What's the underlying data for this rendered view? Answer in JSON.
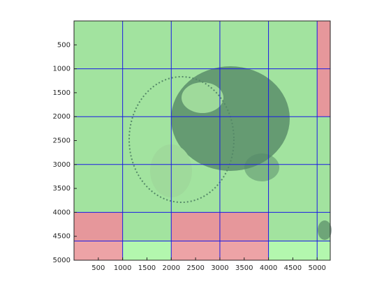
{
  "chart_data": {
    "type": "image-grid",
    "xlim": [
      0,
      5270
    ],
    "ylim": [
      0,
      5000
    ],
    "y_reversed": true,
    "xticks": [
      500,
      1000,
      1500,
      2000,
      2500,
      3000,
      3500,
      4000,
      4500,
      5000
    ],
    "yticks": [
      500,
      1000,
      1500,
      2000,
      2500,
      3000,
      3500,
      4000,
      4500,
      5000
    ],
    "column_edges": [
      0,
      1000,
      2000,
      3000,
      4000,
      5000,
      5270
    ],
    "row_edges": [
      0,
      1000,
      2000,
      3000,
      4000,
      4600,
      5000
    ],
    "grid_color": "#1a1ae6",
    "tile_colors": [
      [
        "#a2e39f",
        "#a2e39f",
        "#a2e39f",
        "#a2e39f",
        "#a2e39f",
        "#e6979b"
      ],
      [
        "#a2e39f",
        "#a2e39f",
        "#a2e39f",
        "#a2e39f",
        "#a2e39f",
        "#e6979b"
      ],
      [
        "#a2e39f",
        "#a2e39f",
        "#a2e39f",
        "#a2e39f",
        "#a2e39f",
        "#a2e39f"
      ],
      [
        "#a2e39f",
        "#a2e39f",
        "#a2e39f",
        "#a2e39f",
        "#a2e39f",
        "#a2e39f"
      ],
      [
        "#e6979b",
        "#a2e39f",
        "#e6979b",
        "#e6979b",
        "#a2e39f",
        "#a2e39f"
      ],
      [
        "#eda3a6",
        "#b3f7ae",
        "#eda3a6",
        "#eda3a6",
        "#b3f7ae",
        "#b3f7ae"
      ]
    ]
  }
}
